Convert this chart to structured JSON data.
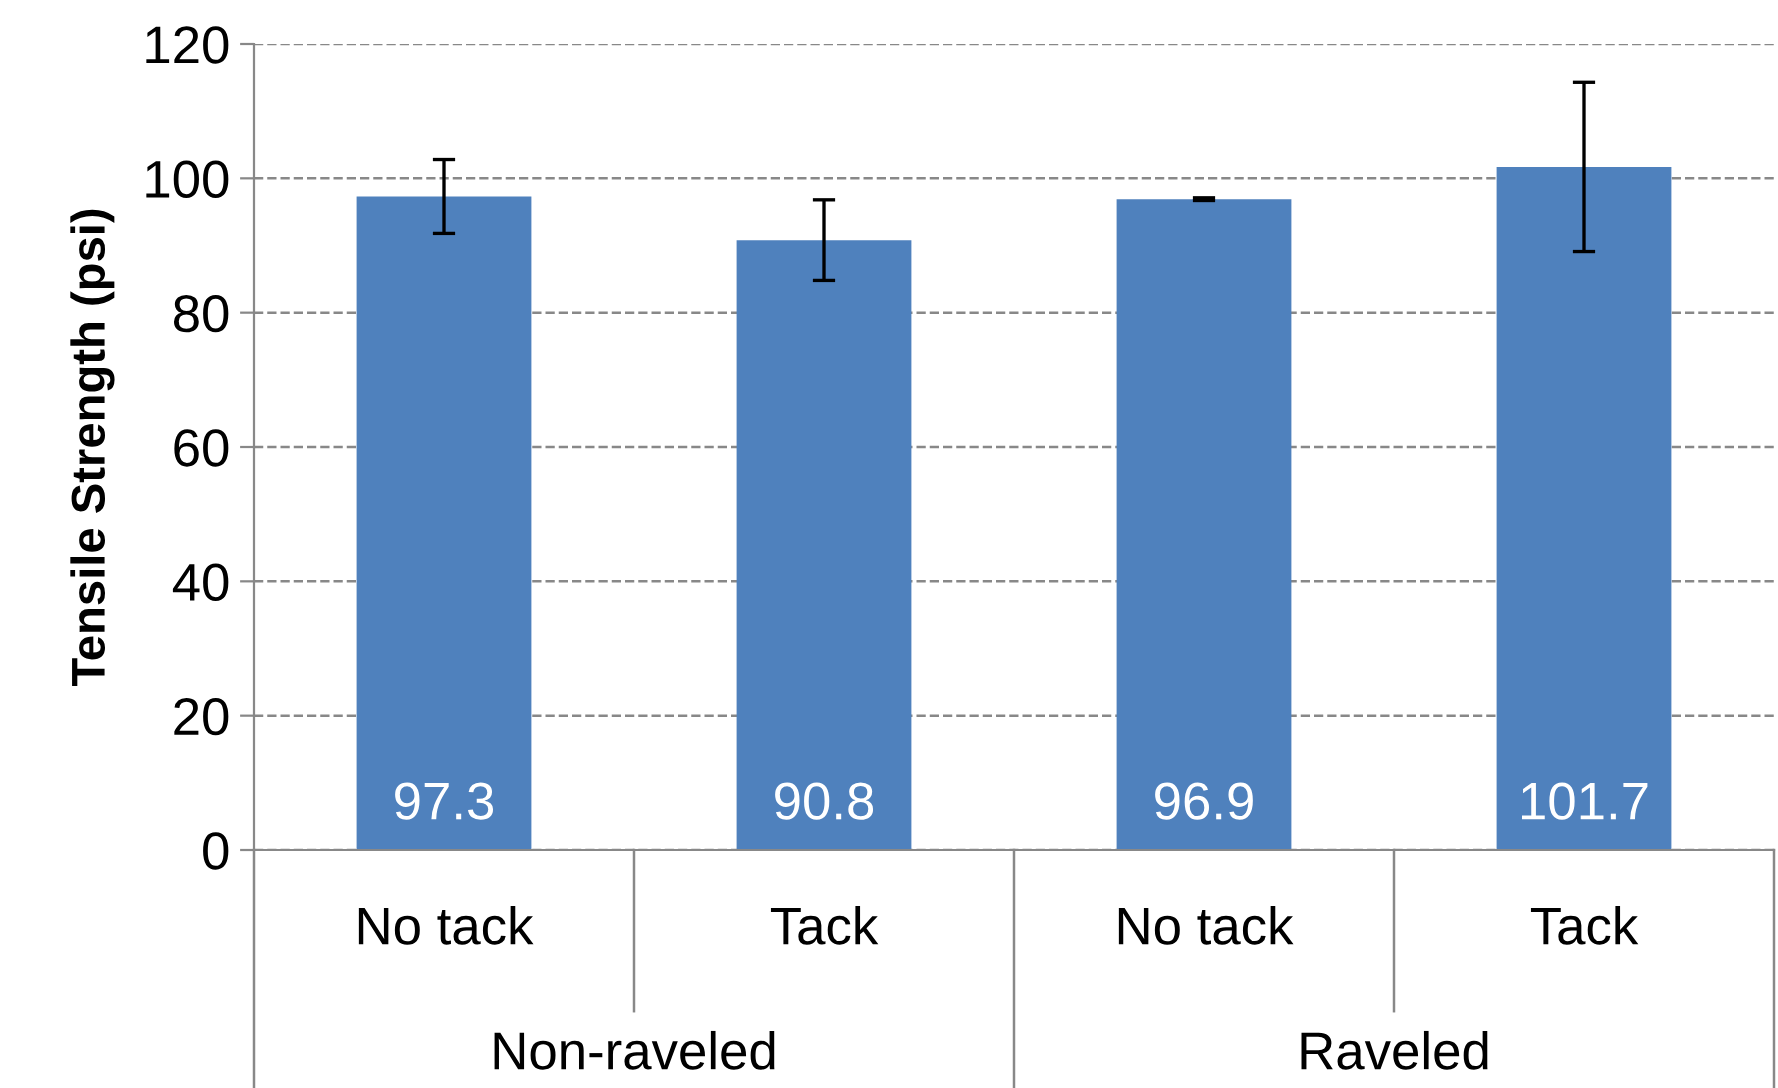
{
  "chart_data": {
    "type": "bar",
    "ylabel": "Tensile Strength (psi)",
    "categories": [
      "No tack",
      "Tack",
      "No tack",
      "Tack"
    ],
    "values": [
      97.3,
      90.8,
      96.9,
      101.7
    ],
    "errors": [
      5.5,
      6,
      0.2,
      12.6
    ],
    "color": "#4f81bd",
    "ylim": [
      0,
      120
    ],
    "yticks": [
      0,
      20,
      40,
      60,
      80,
      100,
      120
    ],
    "grid": "y",
    "data_labels": true,
    "annotations": [
      "Non-raveled",
      "Raveled"
    ]
  }
}
